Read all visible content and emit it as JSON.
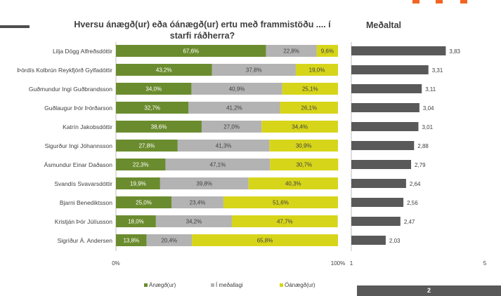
{
  "chart_data": [
    {
      "type": "bar",
      "orientation": "horizontal-stacked-100",
      "title": "Hversu ánægð(ur) eða óánægð(ur) ertu með frammistöðu .... í starfi ráðherra?",
      "categories": [
        "Lilja Dögg Alfreðsdóttir",
        "Þórdís Kolbrún Reykfjörð Gylfadóttir",
        "Guðmundur Ingi Guðbrandsson",
        "Guðlaugur Þór Þórðarson",
        "Katrín Jakobsdóttir",
        "Sigurður Ingi Jóhannsson",
        "Ásmundur Einar Daðason",
        "Svandís Svavarsdóttir",
        "Bjarni Benediktsson",
        "Kristján Þór Júlíusson",
        "Sigríður Á. Andersen"
      ],
      "series": [
        {
          "name": "Ánægð(ur)",
          "color": "#6b8c2e",
          "values": [
            67.6,
            43.2,
            34.0,
            32.7,
            38.6,
            27.8,
            22.3,
            19.9,
            25.0,
            18.0,
            13.8
          ],
          "labels": [
            "67,6%",
            "43,2%",
            "34,0%",
            "32,7%",
            "38,6%",
            "27,8%",
            "22,3%",
            "19,9%",
            "25,0%",
            "18,0%",
            "13,8%"
          ]
        },
        {
          "name": "Í meðallagi",
          "color": "#b3b3b3",
          "values": [
            22.8,
            37.8,
            40.9,
            41.2,
            27.0,
            41.3,
            47.1,
            39.8,
            23.4,
            34.2,
            20.4
          ],
          "labels": [
            "22,8%",
            "37,8%",
            "40,9%",
            "41,2%",
            "27,0%",
            "41,3%",
            "47,1%",
            "39,8%",
            "23,4%",
            "34,2%",
            "20,4%"
          ]
        },
        {
          "name": "Óánægð(ur)",
          "color": "#d7d51a",
          "values": [
            9.6,
            19.0,
            25.1,
            26.1,
            34.4,
            30.9,
            30.7,
            40.3,
            51.6,
            47.7,
            65.8
          ],
          "labels": [
            "9,6%",
            "19,0%",
            "25,1%",
            "26,1%",
            "34,4%",
            "30,9%",
            "30,7%",
            "40,3%",
            "51,6%",
            "47,7%",
            "65,8%"
          ]
        }
      ],
      "xlim": [
        0,
        100
      ],
      "xticks": [
        "0%",
        "100%"
      ],
      "legend": "bottom"
    },
    {
      "type": "bar",
      "orientation": "horizontal",
      "title": "Meðaltal",
      "values": [
        3.83,
        3.31,
        3.11,
        3.04,
        3.01,
        2.88,
        2.79,
        2.64,
        2.56,
        2.47,
        2.03
      ],
      "labels": [
        "3,83",
        "3,31",
        "3,11",
        "3,04",
        "3,01",
        "2,88",
        "2,79",
        "2,64",
        "2,56",
        "2,47",
        "2,03"
      ],
      "color": "#595959",
      "xlim": [
        1,
        5
      ],
      "xticks": [
        "1",
        "5"
      ]
    }
  ],
  "page_number": "2",
  "colors": {
    "accent": "#f26522",
    "badge": "#595959"
  }
}
